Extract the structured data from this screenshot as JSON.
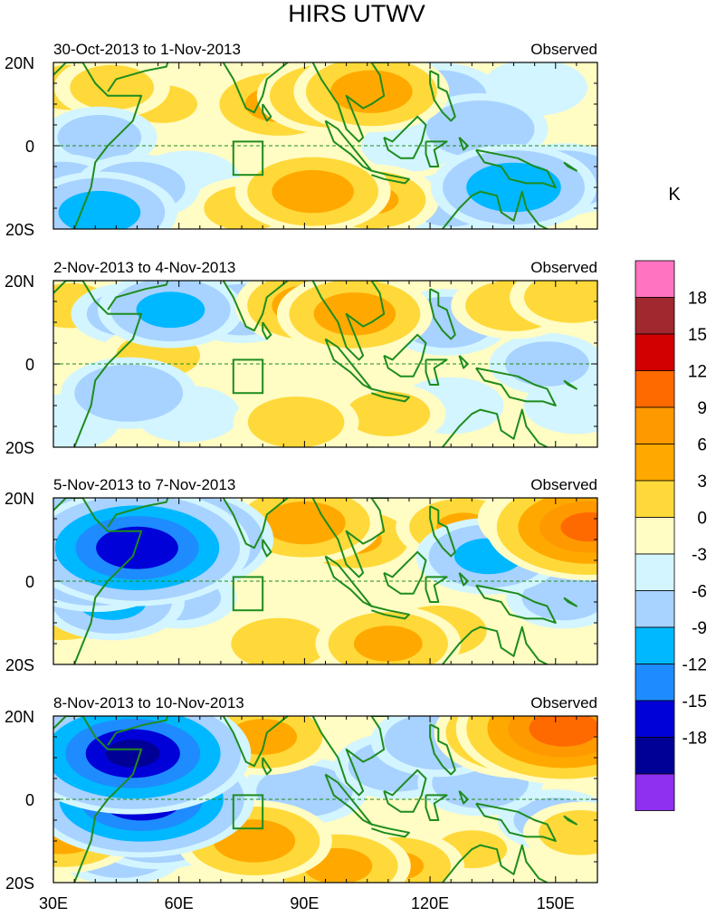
{
  "chart_data": {
    "type": "heatmap",
    "title": "HIRS UTWV",
    "units": "K",
    "xlim": [
      30,
      160
    ],
    "ylim": [
      -20,
      20
    ],
    "x_ticks": [
      {
        "value": 30,
        "label": "30E"
      },
      {
        "value": 60,
        "label": "60E"
      },
      {
        "value": 90,
        "label": "90E"
      },
      {
        "value": 120,
        "label": "120E"
      },
      {
        "value": 150,
        "label": "150E"
      }
    ],
    "y_ticks": [
      {
        "value": 20,
        "label": "20N"
      },
      {
        "value": 0,
        "label": "0"
      },
      {
        "value": -20,
        "label": "20S"
      }
    ],
    "box_region": {
      "lon": [
        73,
        80
      ],
      "lat": [
        -7,
        1
      ]
    },
    "panels": [
      {
        "date_range": "30-Oct-2013 to 1-Nov-2013",
        "tag": "Observed",
        "anomalies": [
          {
            "lon": 34,
            "lat": 14,
            "value": 4
          },
          {
            "lon": 44,
            "lat": 14,
            "value": 4
          },
          {
            "lon": 56,
            "lat": 10,
            "value": 3
          },
          {
            "lon": 41,
            "lat": 2,
            "value": -4
          },
          {
            "lon": 32,
            "lat": -10,
            "value": -5
          },
          {
            "lon": 41,
            "lat": -16,
            "value": -8
          },
          {
            "lon": 50,
            "lat": -10,
            "value": -5
          },
          {
            "lon": 62,
            "lat": -8,
            "value": -3
          },
          {
            "lon": 84,
            "lat": 10,
            "value": 7
          },
          {
            "lon": 96,
            "lat": 12,
            "value": 7
          },
          {
            "lon": 106,
            "lat": 13,
            "value": 8
          },
          {
            "lon": 92,
            "lat": -11,
            "value": 8
          },
          {
            "lon": 106,
            "lat": -13,
            "value": 6
          },
          {
            "lon": 76,
            "lat": -15,
            "value": 4
          },
          {
            "lon": 70,
            "lat": 9,
            "value": 2
          },
          {
            "lon": 122,
            "lat": 12,
            "value": -5
          },
          {
            "lon": 132,
            "lat": 4,
            "value": -6
          },
          {
            "lon": 140,
            "lat": -10,
            "value": -9
          },
          {
            "lon": 152,
            "lat": -8,
            "value": -6
          },
          {
            "lon": 145,
            "lat": 14,
            "value": -3
          },
          {
            "lon": 155,
            "lat": 14,
            "value": 2
          },
          {
            "lon": 115,
            "lat": 0,
            "value": -2
          },
          {
            "lon": 125,
            "lat": -14,
            "value": -4
          }
        ]
      },
      {
        "date_range": "2-Nov-2013 to 4-Nov-2013",
        "tag": "Observed",
        "anomalies": [
          {
            "lon": 34,
            "lat": 14,
            "value": 4
          },
          {
            "lon": 48,
            "lat": 12,
            "value": -4
          },
          {
            "lon": 58,
            "lat": 13,
            "value": -7
          },
          {
            "lon": 75,
            "lat": 13,
            "value": -5
          },
          {
            "lon": 48,
            "lat": -7,
            "value": -6
          },
          {
            "lon": 62,
            "lat": -12,
            "value": -3
          },
          {
            "lon": 55,
            "lat": 2,
            "value": 4
          },
          {
            "lon": 92,
            "lat": 14,
            "value": 8
          },
          {
            "lon": 102,
            "lat": 12,
            "value": 8
          },
          {
            "lon": 88,
            "lat": -14,
            "value": 5
          },
          {
            "lon": 110,
            "lat": -12,
            "value": 4
          },
          {
            "lon": 124,
            "lat": 10,
            "value": -5
          },
          {
            "lon": 125,
            "lat": -10,
            "value": -3
          },
          {
            "lon": 140,
            "lat": 14,
            "value": 5
          },
          {
            "lon": 154,
            "lat": 16,
            "value": 5
          },
          {
            "lon": 148,
            "lat": 0,
            "value": -4
          },
          {
            "lon": 155,
            "lat": -10,
            "value": -3
          },
          {
            "lon": 33,
            "lat": -14,
            "value": -3
          }
        ]
      },
      {
        "date_range": "5-Nov-2013 to 7-Nov-2013",
        "tag": "Observed",
        "anomalies": [
          {
            "lon": 50,
            "lat": 8,
            "value": -15
          },
          {
            "lon": 58,
            "lat": 10,
            "value": -13
          },
          {
            "lon": 40,
            "lat": 3,
            "value": -9
          },
          {
            "lon": 36,
            "lat": 15,
            "value": -5
          },
          {
            "lon": 44,
            "lat": -5,
            "value": -7
          },
          {
            "lon": 60,
            "lat": -4,
            "value": -4
          },
          {
            "lon": 32,
            "lat": -8,
            "value": 5
          },
          {
            "lon": 64,
            "lat": 14,
            "value": -4
          },
          {
            "lon": 90,
            "lat": 14,
            "value": 8
          },
          {
            "lon": 102,
            "lat": 10,
            "value": 6
          },
          {
            "lon": 84,
            "lat": -15,
            "value": 5
          },
          {
            "lon": 110,
            "lat": -15,
            "value": 7
          },
          {
            "lon": 122,
            "lat": -12,
            "value": 5
          },
          {
            "lon": 134,
            "lat": 6,
            "value": -7
          },
          {
            "lon": 128,
            "lat": 13,
            "value": 6
          },
          {
            "lon": 150,
            "lat": 15,
            "value": 8
          },
          {
            "lon": 158,
            "lat": 13,
            "value": 13
          },
          {
            "lon": 152,
            "lat": -4,
            "value": -4
          },
          {
            "lon": 74,
            "lat": 2,
            "value": 2
          }
        ]
      },
      {
        "date_range": "8-Nov-2013 to 10-Nov-2013",
        "tag": "Observed",
        "anomalies": [
          {
            "lon": 49,
            "lat": 11,
            "value": -16
          },
          {
            "lon": 44,
            "lat": 5,
            "value": -11
          },
          {
            "lon": 51,
            "lat": 0,
            "value": -15
          },
          {
            "lon": 55,
            "lat": -7,
            "value": -8
          },
          {
            "lon": 46,
            "lat": -12,
            "value": -6
          },
          {
            "lon": 32,
            "lat": -8,
            "value": 8
          },
          {
            "lon": 36,
            "lat": 15,
            "value": 4
          },
          {
            "lon": 62,
            "lat": 15,
            "value": 5
          },
          {
            "lon": 72,
            "lat": 12,
            "value": 3
          },
          {
            "lon": 80,
            "lat": 15,
            "value": 7
          },
          {
            "lon": 78,
            "lat": -10,
            "value": 8
          },
          {
            "lon": 90,
            "lat": 2,
            "value": -5
          },
          {
            "lon": 98,
            "lat": -16,
            "value": 7
          },
          {
            "lon": 112,
            "lat": -16,
            "value": 6
          },
          {
            "lon": 112,
            "lat": 8,
            "value": -5
          },
          {
            "lon": 122,
            "lat": 14,
            "value": -6
          },
          {
            "lon": 132,
            "lat": 4,
            "value": -5
          },
          {
            "lon": 142,
            "lat": 16,
            "value": 10
          },
          {
            "lon": 152,
            "lat": 17,
            "value": 14
          },
          {
            "lon": 150,
            "lat": -5,
            "value": -4
          },
          {
            "lon": 156,
            "lat": -8,
            "value": 4
          },
          {
            "lon": 130,
            "lat": -12,
            "value": 3
          }
        ]
      }
    ],
    "legend": {
      "labels": [
        "18",
        "15",
        "12",
        "9",
        "6",
        "3",
        "0",
        "-3",
        "-6",
        "-9",
        "-12",
        "-15",
        "-18"
      ],
      "bins": [
        {
          "lo": 21,
          "hi": null,
          "color": "#ff73c0"
        },
        {
          "lo": 18,
          "hi": 21,
          "color": "#a0282e"
        },
        {
          "lo": 15,
          "hi": 18,
          "color": "#d20000"
        },
        {
          "lo": 12,
          "hi": 15,
          "color": "#ff6a00"
        },
        {
          "lo": 9,
          "hi": 12,
          "color": "#ff9900"
        },
        {
          "lo": 6,
          "hi": 9,
          "color": "#ffa900"
        },
        {
          "lo": 3,
          "hi": 6,
          "color": "#ffd93a"
        },
        {
          "lo": 0,
          "hi": 3,
          "color": "#fffcc4"
        },
        {
          "lo": -3,
          "hi": 0,
          "color": "#d3f5ff"
        },
        {
          "lo": -6,
          "hi": -3,
          "color": "#a8d2ff"
        },
        {
          "lo": -9,
          "hi": -6,
          "color": "#00b8ff"
        },
        {
          "lo": -12,
          "hi": -9,
          "color": "#1e8cff"
        },
        {
          "lo": -15,
          "hi": -12,
          "color": "#0000d8"
        },
        {
          "lo": -18,
          "hi": -15,
          "color": "#000096"
        },
        {
          "lo": null,
          "hi": -18,
          "color": "#8f2ff0"
        }
      ]
    },
    "coastline_color": "#1e8c1e",
    "equator_color": "#1e8c1e"
  }
}
